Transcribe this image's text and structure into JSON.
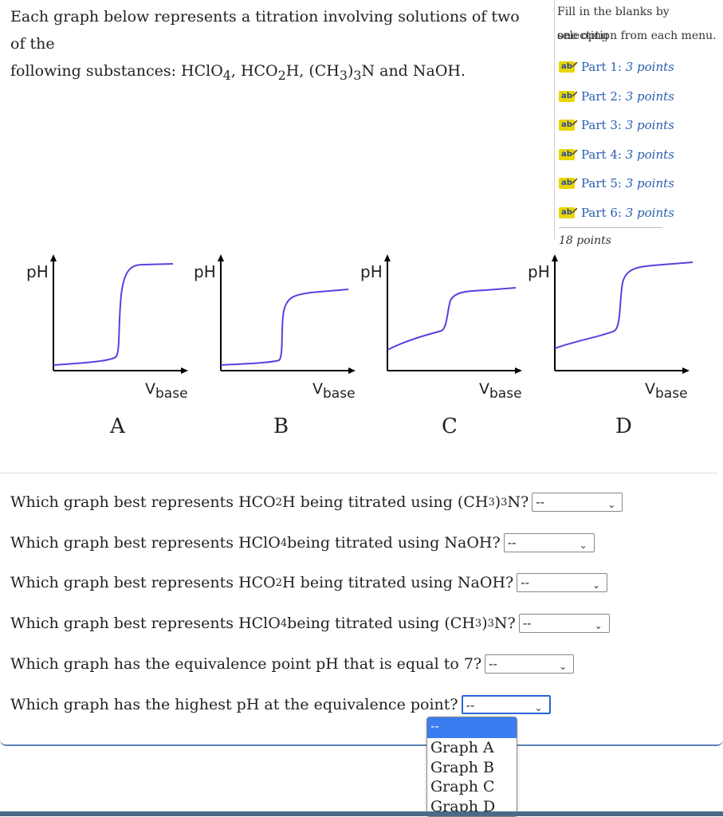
{
  "intro": {
    "line1": "Each graph below represents a titration involving solutions of two of the",
    "line2_prefix": "following substances: HClO",
    "line2_s1": "4",
    "line2_mid1": ", HCO",
    "line2_s2": "2",
    "line2_mid2": "H, (CH",
    "line2_s3": "3",
    "line2_mid3": ")",
    "line2_s4": "3",
    "line2_end": "N and NaOH."
  },
  "sidebar": {
    "fill_line1": "Fill in the blanks by selecting",
    "fill_line2": "one option from each menu.",
    "parts": [
      {
        "label": "Part 1:",
        "points": "3 points"
      },
      {
        "label": "Part 2:",
        "points": "3 points"
      },
      {
        "label": "Part 3:",
        "points": "3 points"
      },
      {
        "label": "Part 4:",
        "points": "3 points"
      },
      {
        "label": "Part 5:",
        "points": "3 points"
      },
      {
        "label": "Part 6:",
        "points": "3 points"
      }
    ],
    "total": "18 points",
    "icon": "ab-edit-icon"
  },
  "graphs": {
    "y_label": "pH",
    "x_label_v": "V",
    "x_label_sub": "base",
    "curve_color": "#5a3fe0",
    "labels": [
      "A",
      "B",
      "C",
      "D"
    ]
  },
  "questions": [
    {
      "pre": "Which graph best represents HCO",
      "s1": "2",
      "mid": "H being titrated using (CH",
      "s2": "3",
      "mid2": ")",
      "s3": "3",
      "end": "N?",
      "value": "--"
    },
    {
      "pre": "Which graph best represents HClO",
      "s1": "4",
      "mid": " being titrated using NaOH?",
      "value": "--"
    },
    {
      "pre": "Which graph best represents HCO",
      "s1": "2",
      "mid": "H being titrated using NaOH?",
      "value": "--"
    },
    {
      "pre": "Which graph best represents HClO",
      "s1": "4",
      "mid": " being titrated using (CH",
      "s2": "3",
      "mid2": ")",
      "s3": "3",
      "end": "N?",
      "value": "--"
    },
    {
      "pre": "Which graph has the equivalence point pH that is equal to 7?",
      "value": "--"
    },
    {
      "pre": "Which graph has the highest pH at the equivalence point?",
      "value": "--"
    }
  ],
  "dropdown_options": [
    "--",
    "Graph A",
    "Graph B",
    "Graph C",
    "Graph D"
  ]
}
